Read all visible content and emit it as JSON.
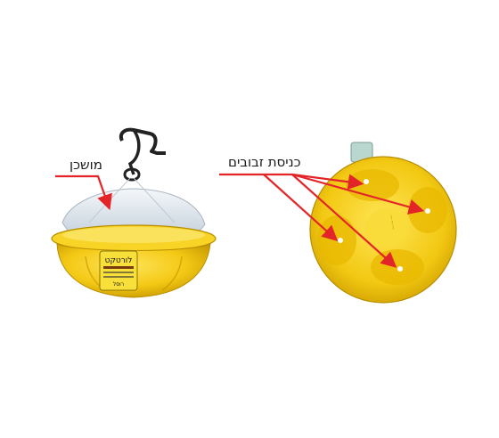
{
  "labels": {
    "reservoir": "מושכן",
    "fly_entry": "כניסת זבובים"
  },
  "product_print": {
    "name": "לורטקט",
    "brand": "רוסל"
  },
  "colors": {
    "trap_yellow": "#f2cc12",
    "trap_yellow_dark": "#d9a800",
    "bag": "#dde6ee",
    "arrow_red": "#e3252a",
    "hook": "#222222",
    "text": "#1a1a1a"
  }
}
